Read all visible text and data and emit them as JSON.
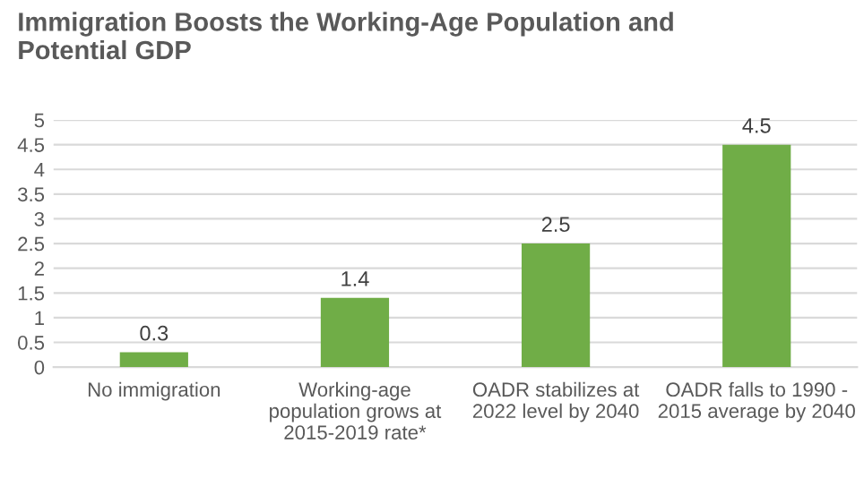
{
  "chart_data": {
    "type": "bar",
    "title": "Immigration Boosts the Working-Age Population and\nPotential GDP",
    "categories": [
      "No immigration",
      "Working-age\npopulation grows at\n2015-2019 rate*",
      "OADR stabilizes at\n2022 level by 2040",
      "OADR falls to 1990 -\n2015 average by 2040"
    ],
    "values": [
      0.3,
      1.4,
      2.5,
      4.5
    ],
    "color": "#70ad47",
    "ylim": [
      0,
      5
    ],
    "yticks": [
      0,
      0.5,
      1,
      1.5,
      2,
      2.5,
      3,
      3.5,
      4,
      4.5,
      5
    ],
    "grid": "y",
    "data_labels": true
  }
}
